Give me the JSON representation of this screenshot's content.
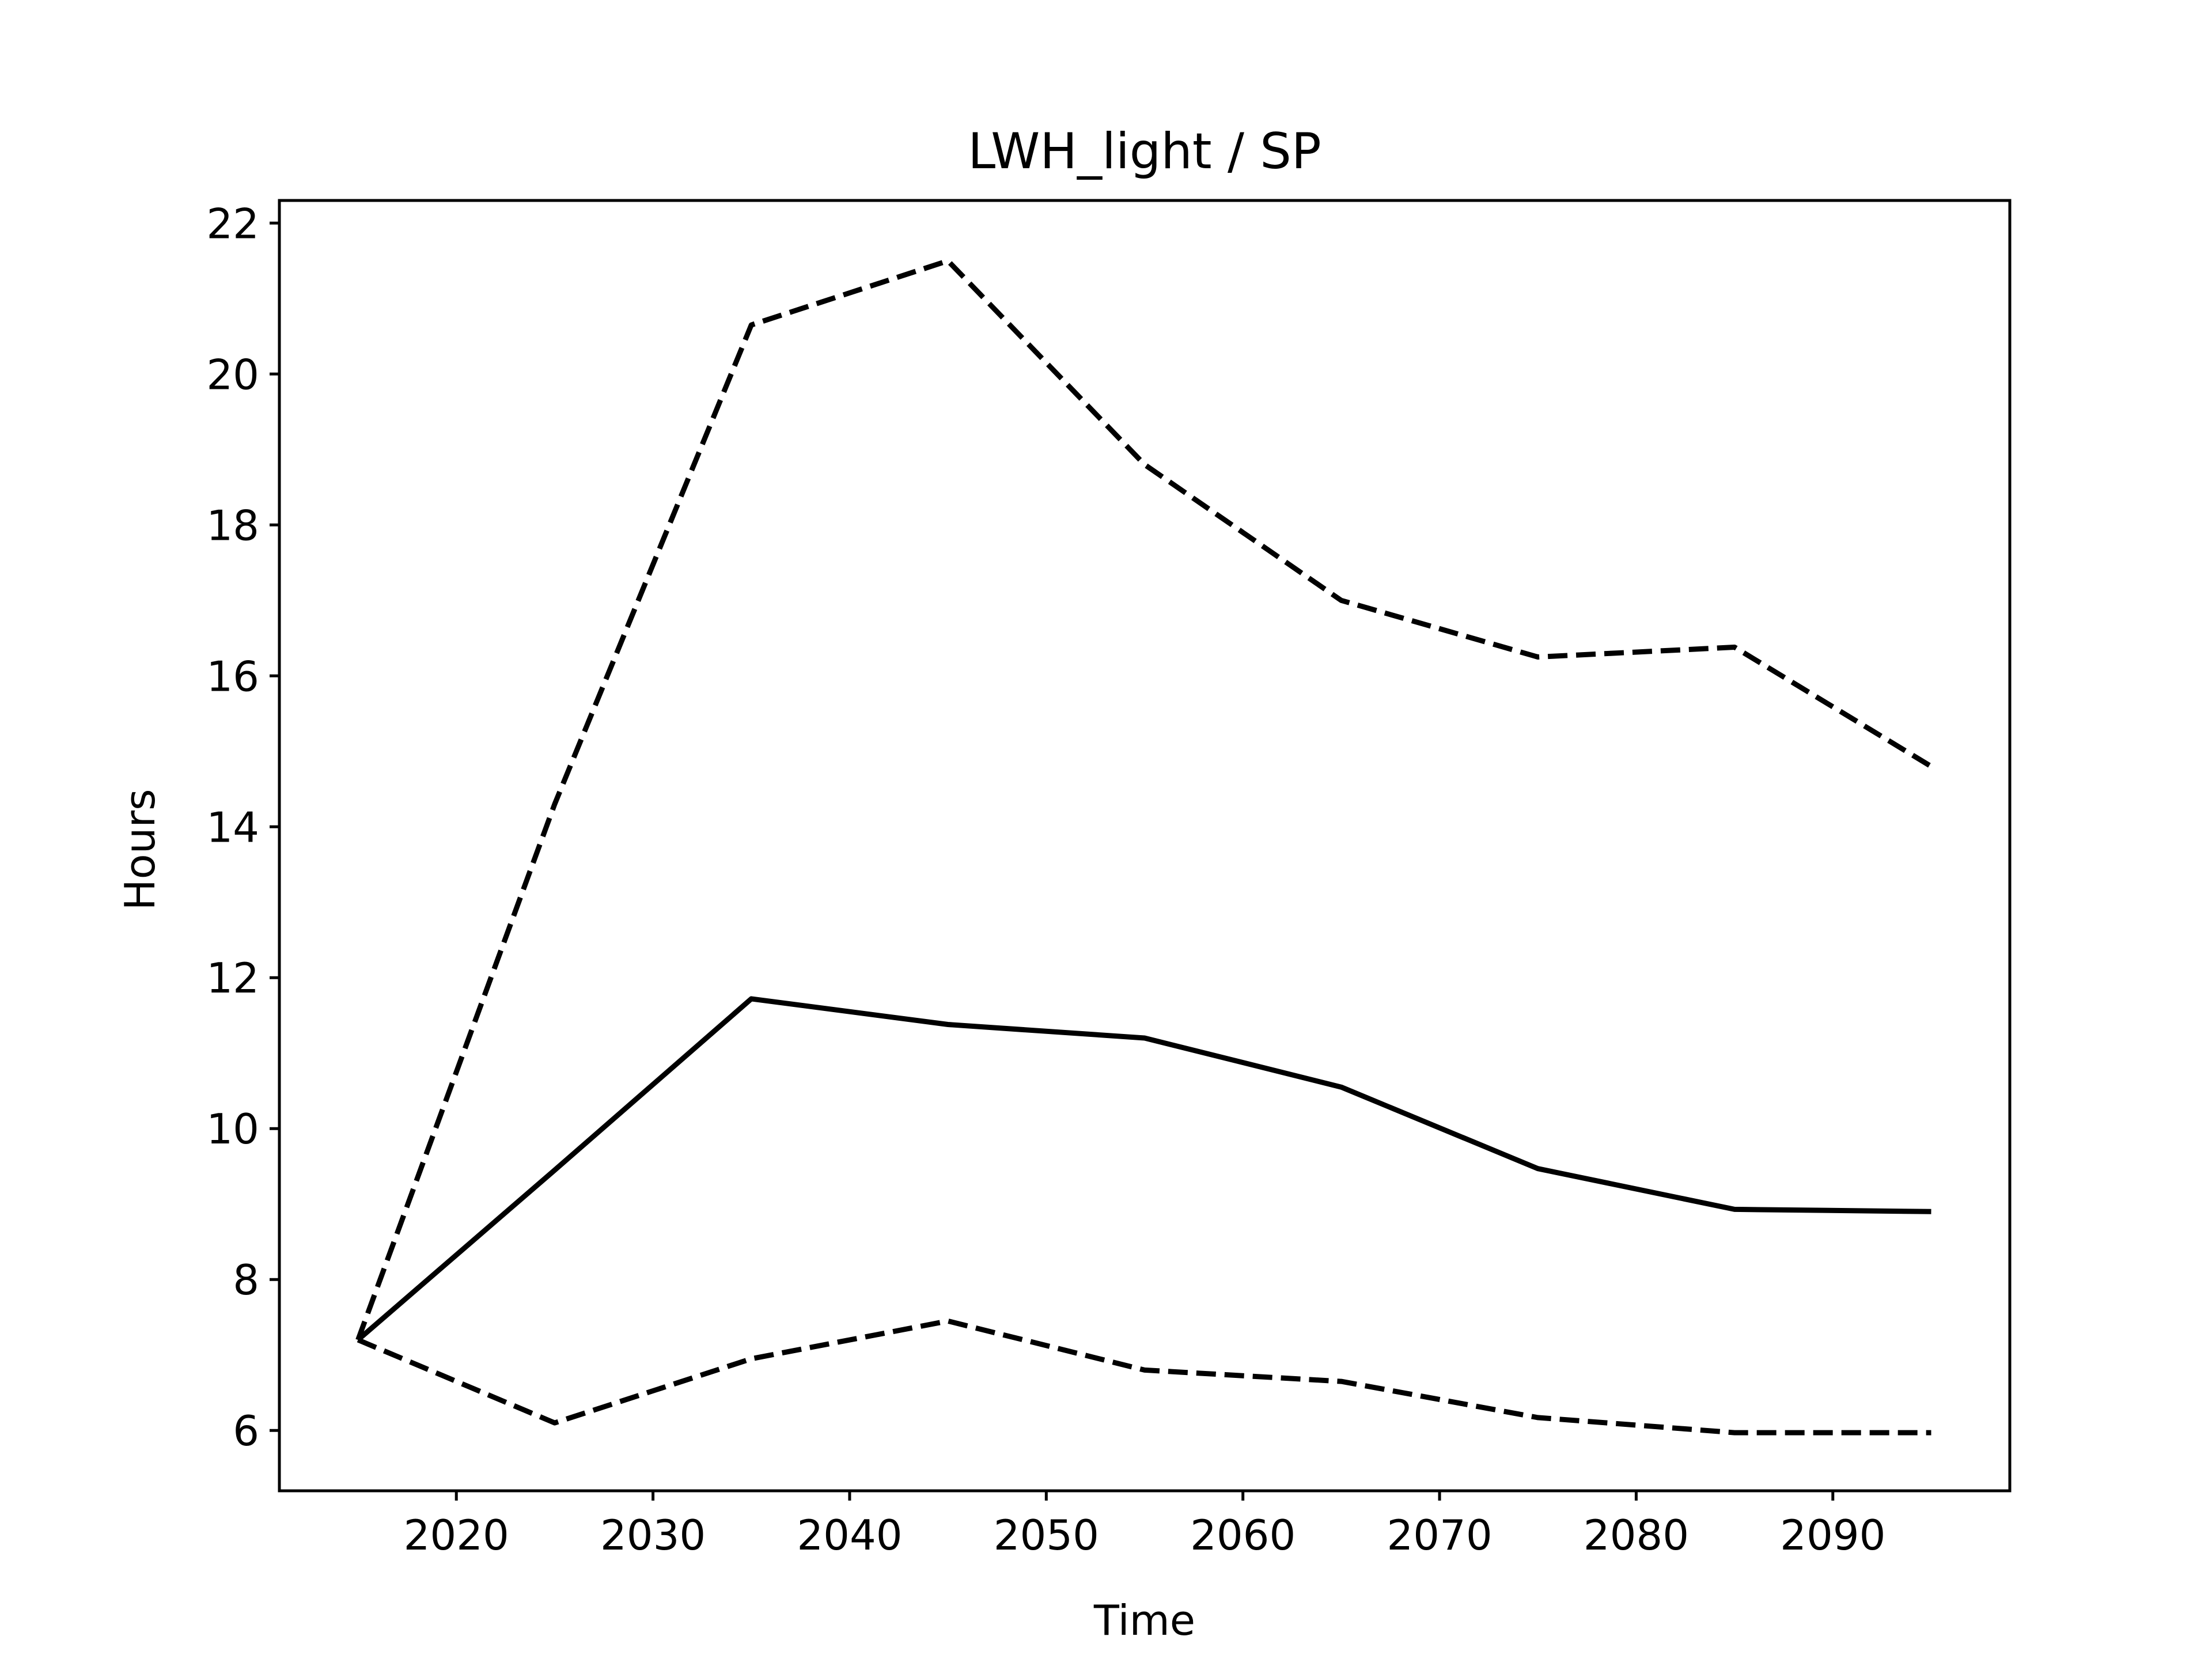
{
  "chart_data": {
    "type": "line",
    "title": "LWH_light / SP",
    "xlabel": "Time",
    "ylabel": "Hours",
    "xlim": [
      2011,
      2099
    ],
    "ylim": [
      5.2,
      22.3
    ],
    "xticks": [
      2020,
      2030,
      2040,
      2050,
      2060,
      2070,
      2080,
      2090
    ],
    "yticks": [
      6,
      8,
      10,
      12,
      14,
      16,
      18,
      20,
      22
    ],
    "grid": false,
    "legend": "none",
    "x": [
      2015,
      2025,
      2035,
      2045,
      2055,
      2065,
      2075,
      2085,
      2095
    ],
    "series": [
      {
        "style": "dashed",
        "color": "#000000",
        "values": [
          7.2,
          14.3,
          20.65,
          21.5,
          18.8,
          17.0,
          16.25,
          16.38,
          14.8
        ]
      },
      {
        "style": "solid",
        "color": "#000000",
        "values": [
          7.2,
          9.45,
          11.72,
          11.38,
          11.2,
          10.55,
          9.47,
          8.93,
          8.9
        ]
      },
      {
        "style": "dashed",
        "color": "#000000",
        "values": [
          7.2,
          6.1,
          6.95,
          7.45,
          6.8,
          6.65,
          6.17,
          5.97,
          5.97
        ]
      }
    ]
  }
}
